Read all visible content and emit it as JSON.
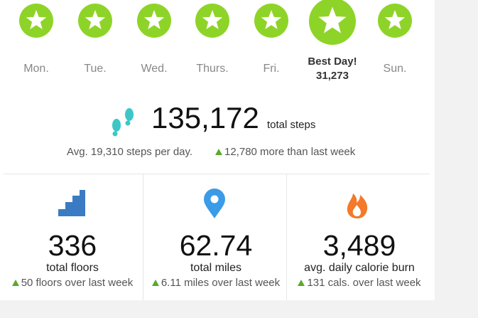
{
  "week": {
    "days": [
      {
        "label": "Mon."
      },
      {
        "label": "Tue."
      },
      {
        "label": "Wed."
      },
      {
        "label": "Thurs."
      },
      {
        "label": "Fri."
      },
      {
        "label": "Best Day!",
        "steps": "31,273"
      },
      {
        "label": "Sun."
      }
    ]
  },
  "steps": {
    "total": "135,172",
    "unit": "total steps",
    "average": "Avg. 19,310 steps per day.",
    "change": "12,780 more than last week"
  },
  "cards": [
    {
      "value": "336",
      "label": "total floors",
      "change": "50 floors over last week"
    },
    {
      "value": "62.74",
      "label": "total miles",
      "change": "6.11 miles over last week"
    },
    {
      "value": "3,489",
      "label": "avg. daily calorie burn",
      "change": "131 cals. over last week"
    }
  ]
}
